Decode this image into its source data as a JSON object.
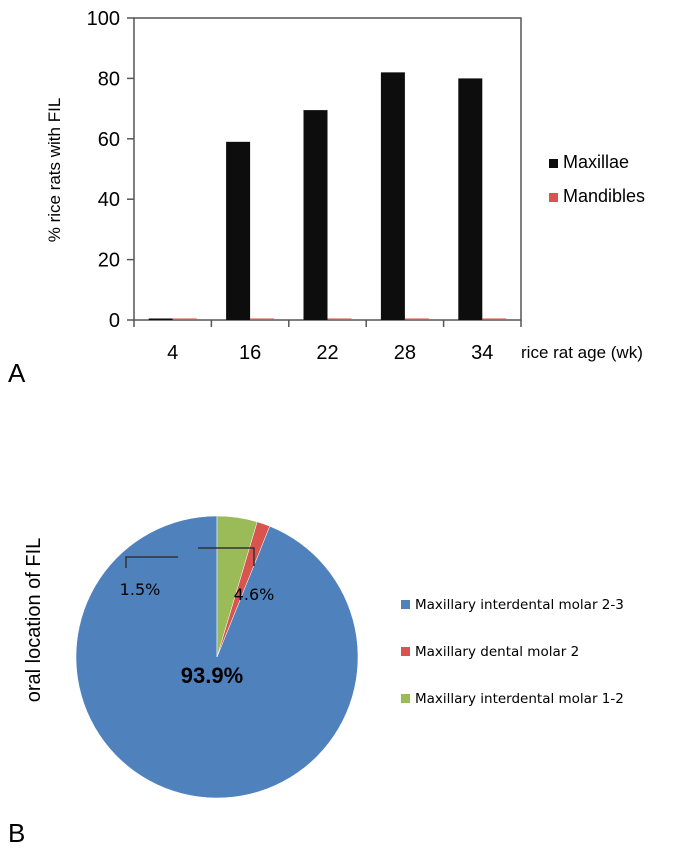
{
  "panels": {
    "a_label": "A",
    "b_label": "B"
  },
  "chart_data": [
    {
      "type": "bar",
      "categories": [
        "4",
        "16",
        "22",
        "28",
        "34"
      ],
      "series": [
        {
          "name": "Maxillae",
          "values": [
            0.5,
            59,
            69.5,
            82,
            80
          ],
          "color": "#0d0d0d"
        },
        {
          "name": "Mandibles",
          "values": [
            0.5,
            0.5,
            0.5,
            0.5,
            0.5
          ],
          "color": "#d9534f"
        }
      ],
      "xlabel": "rice rat age (wk)",
      "ylabel": "% rice rats with FIL",
      "ylim": [
        0,
        100
      ],
      "yticks": [
        0,
        20,
        40,
        60,
        80,
        100
      ],
      "grid": false,
      "legend": "right"
    },
    {
      "type": "pie",
      "labels": [
        "Maxillary interdental molar 2-3",
        "Maxillary dental molar 2",
        "Maxillary interdental molar 1-2"
      ],
      "values": [
        93.9,
        1.5,
        4.6
      ],
      "value_labels": [
        "93.9%",
        "1.5%",
        "4.6%"
      ],
      "colors": [
        "#4f81bd",
        "#d9534f",
        "#9bbb59"
      ],
      "ylabel": "oral location of FIL",
      "legend": "right"
    }
  ]
}
